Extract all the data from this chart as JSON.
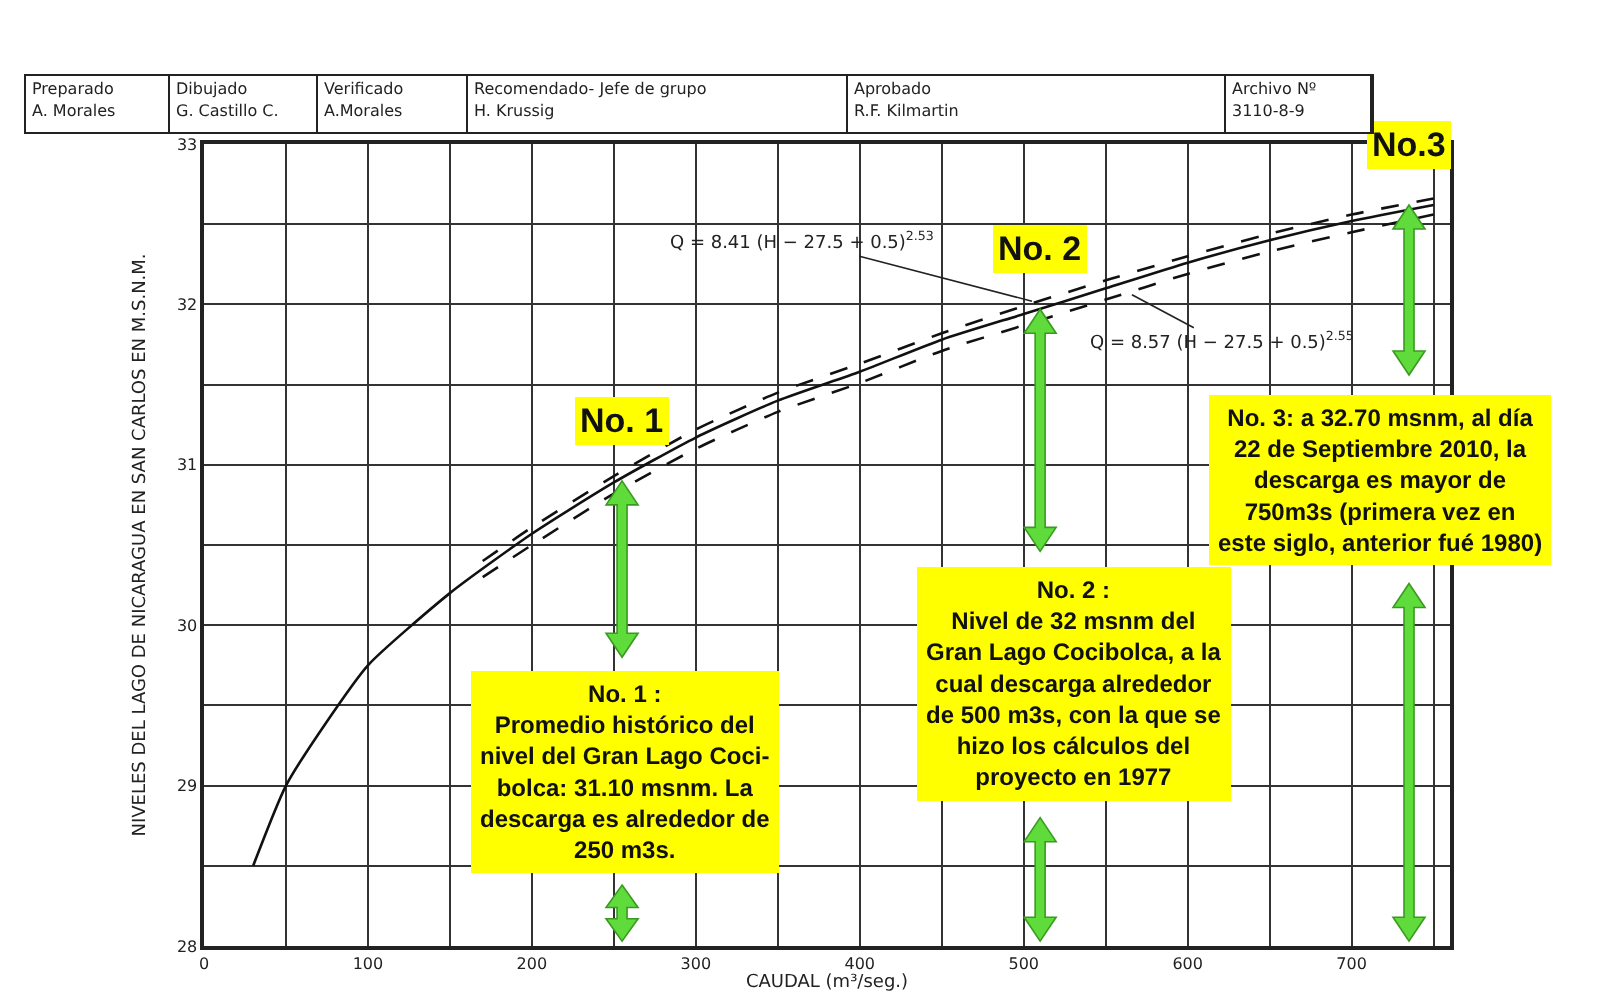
{
  "chart_data": {
    "type": "line",
    "xlabel": "CAUDAL (m³/seg.)",
    "ylabel": "NIVELES DEL LAGO DE NICARAGUA EN SAN CARLOS EN M.S.N.M.",
    "xlim": [
      0,
      760
    ],
    "xticks": [
      0,
      {
        "value": 50,
        "label": null
      },
      100,
      {
        "value": 150,
        "label": null
      },
      200,
      {
        "value": 250,
        "label": null
      },
      300,
      {
        "value": 350,
        "label": null
      },
      400,
      {
        "value": 450,
        "label": null
      },
      500,
      {
        "value": 550,
        "label": null
      },
      600,
      {
        "value": 650,
        "label": null
      },
      700,
      {
        "value": 750,
        "label": null
      }
    ],
    "ylim": [
      28,
      33
    ],
    "yticks": [
      28,
      {
        "value": 28.5,
        "label": null
      },
      29,
      {
        "value": 29.5,
        "label": null
      },
      30,
      {
        "value": 30.5,
        "label": null
      },
      31,
      {
        "value": 31.5,
        "label": null
      },
      32,
      {
        "value": 32.5,
        "label": null
      },
      33
    ],
    "grid": true,
    "series": [
      {
        "color": "#111111",
        "line_style": "solid",
        "x": [
          30,
          50,
          75,
          100,
          150,
          200,
          250,
          300,
          350,
          400,
          450,
          500,
          550,
          600,
          650,
          700,
          750
        ],
        "values": [
          28.5,
          29.0,
          29.4,
          29.75,
          30.2,
          30.57,
          30.89,
          31.17,
          31.4,
          31.58,
          31.78,
          31.94,
          32.1,
          32.26,
          32.4,
          32.52,
          32.62
        ]
      },
      {
        "color": "#111111",
        "line_style": "dashed",
        "x": [
          170,
          200,
          250,
          300,
          350,
          400,
          450,
          500,
          550,
          600,
          650,
          700,
          750
        ],
        "values": [
          30.4,
          30.61,
          30.93,
          31.22,
          31.45,
          31.63,
          31.82,
          31.99,
          32.15,
          32.3,
          32.44,
          32.56,
          32.66
        ]
      },
      {
        "color": "#111111",
        "line_style": "dashed",
        "x": [
          170,
          200,
          250,
          300,
          350,
          400,
          450,
          500,
          550,
          600,
          650,
          700,
          750
        ],
        "values": [
          30.3,
          30.5,
          30.82,
          31.1,
          31.33,
          31.51,
          31.71,
          31.87,
          32.03,
          32.19,
          32.33,
          32.45,
          32.56
        ]
      }
    ],
    "annotations": [
      "Preparado",
      "A. Morales",
      "Dibujado",
      "G. Castillo C.",
      "Verificado",
      "A.Morales",
      "Recomendado- Jefe de grupo",
      "H. Krussig",
      "Aprobado",
      "R.F. Kilmartin",
      "Archivo Nº",
      "3110-8-9",
      {
        "text": "Q = 8.41 (H − 27.5 + 0.5)$^{2.53}$",
        "x": 505,
        "y": 32.02
      },
      {
        "text": "Q = 8.57 (H − 27.5 + 0.5)$^{2.55}$",
        "x": 566,
        "y": 32.06
      },
      {
        "text": "No. 1",
        "x": 255,
        "y": 30.9
      },
      {
        "text": "No. 2",
        "x": 510,
        "y": 31.97
      },
      {
        "text": "No.3",
        "x": 735,
        "y": 32.62
      },
      "No. 1 :\nPromedio histórico del\nnivel del Gran Lago Coci-\nbolca: 31.10 msnm. La\ndescarga es alrededor de\n250 m3s.",
      "No. 2 :\nNivel de 32 msnm del\nGran Lago Cocibolca, a la\ncual descarga alrededor\nde 500 m3s, con la que se\nhizo los cálculos del\nproyecto en 1977",
      "No. 3: a 32.70 msnm, al día\n22 de Septiembre 2010, la\ndescarga es mayor de\n750m3s (primera vez en\neste siglo, anterior fué 1980)"
    ]
  }
}
